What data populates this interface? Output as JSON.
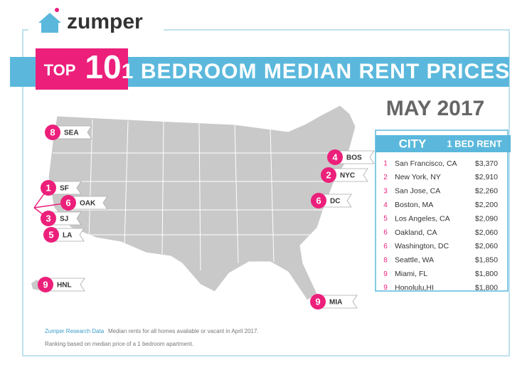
{
  "header": {
    "logo": "zumper",
    "top": "TOP",
    "ten": "10",
    "title": "1 BEDROOM MEDIAN RENT PRICES",
    "date": "MAY 2017"
  },
  "table": {
    "columns": [
      "CITY",
      "1 BED RENT"
    ],
    "rows": [
      [
        "1",
        "San Francisco, CA",
        "$3,370"
      ],
      [
        "2",
        "New York, NY",
        "$2,910"
      ],
      [
        "3",
        "San Jose, CA",
        "$2,260"
      ],
      [
        "4",
        "Boston, MA",
        "$2,200"
      ],
      [
        "5",
        "Los Angeles, CA",
        "$2,090"
      ],
      [
        "6",
        "Oakland, CA",
        "$2,060"
      ],
      [
        "6",
        "Washington, DC",
        "$2,060"
      ],
      [
        "8",
        "Seattle, WA",
        "$1,850"
      ],
      [
        "9",
        "Miami, FL",
        "$1,800"
      ],
      [
        "9",
        "Honolulu,HI",
        "$1,800"
      ]
    ]
  },
  "markers": [
    {
      "rank": "8",
      "label": "SEA"
    },
    {
      "rank": "4",
      "label": "BOS"
    },
    {
      "rank": "2",
      "label": "NYC"
    },
    {
      "rank": "1",
      "label": "SF"
    },
    {
      "rank": "6",
      "label": "OAK"
    },
    {
      "rank": "6",
      "label": "DC"
    },
    {
      "rank": "3",
      "label": "SJ"
    },
    {
      "rank": "5",
      "label": "LA"
    },
    {
      "rank": "9",
      "label": "HNL"
    },
    {
      "rank": "9",
      "label": "MIA"
    }
  ],
  "footer": {
    "source": "Zumper Research Data",
    "note": "Median rents for all homes available or vacant in April 2017.",
    "note2": "Ranking based on median price of a 1 bedroom apartment."
  }
}
